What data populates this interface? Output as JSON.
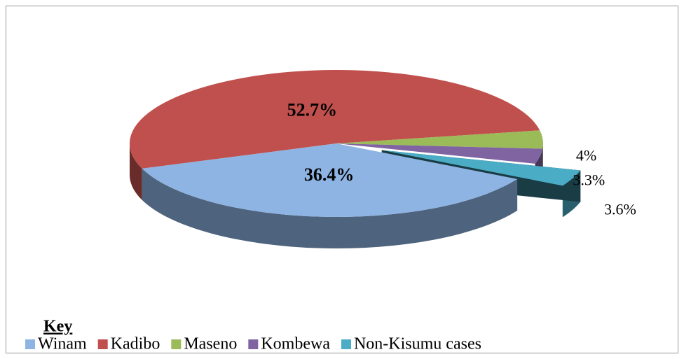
{
  "chart_data": {
    "type": "pie",
    "categories": [
      "Winam",
      "Kadibo",
      "Maseno",
      "Kombewa",
      "Non-Kisumu cases"
    ],
    "values": [
      36.4,
      52.7,
      4,
      3.3,
      3.6
    ],
    "value_labels": [
      "36.4%",
      "52.7%",
      "4%",
      "3.3%",
      "3.6%"
    ],
    "colors": [
      "#8eb4e3",
      "#c0504d",
      "#9bbb59",
      "#8064a2",
      "#4bacc6"
    ],
    "legend_title": "Key",
    "legend": "bottom"
  }
}
